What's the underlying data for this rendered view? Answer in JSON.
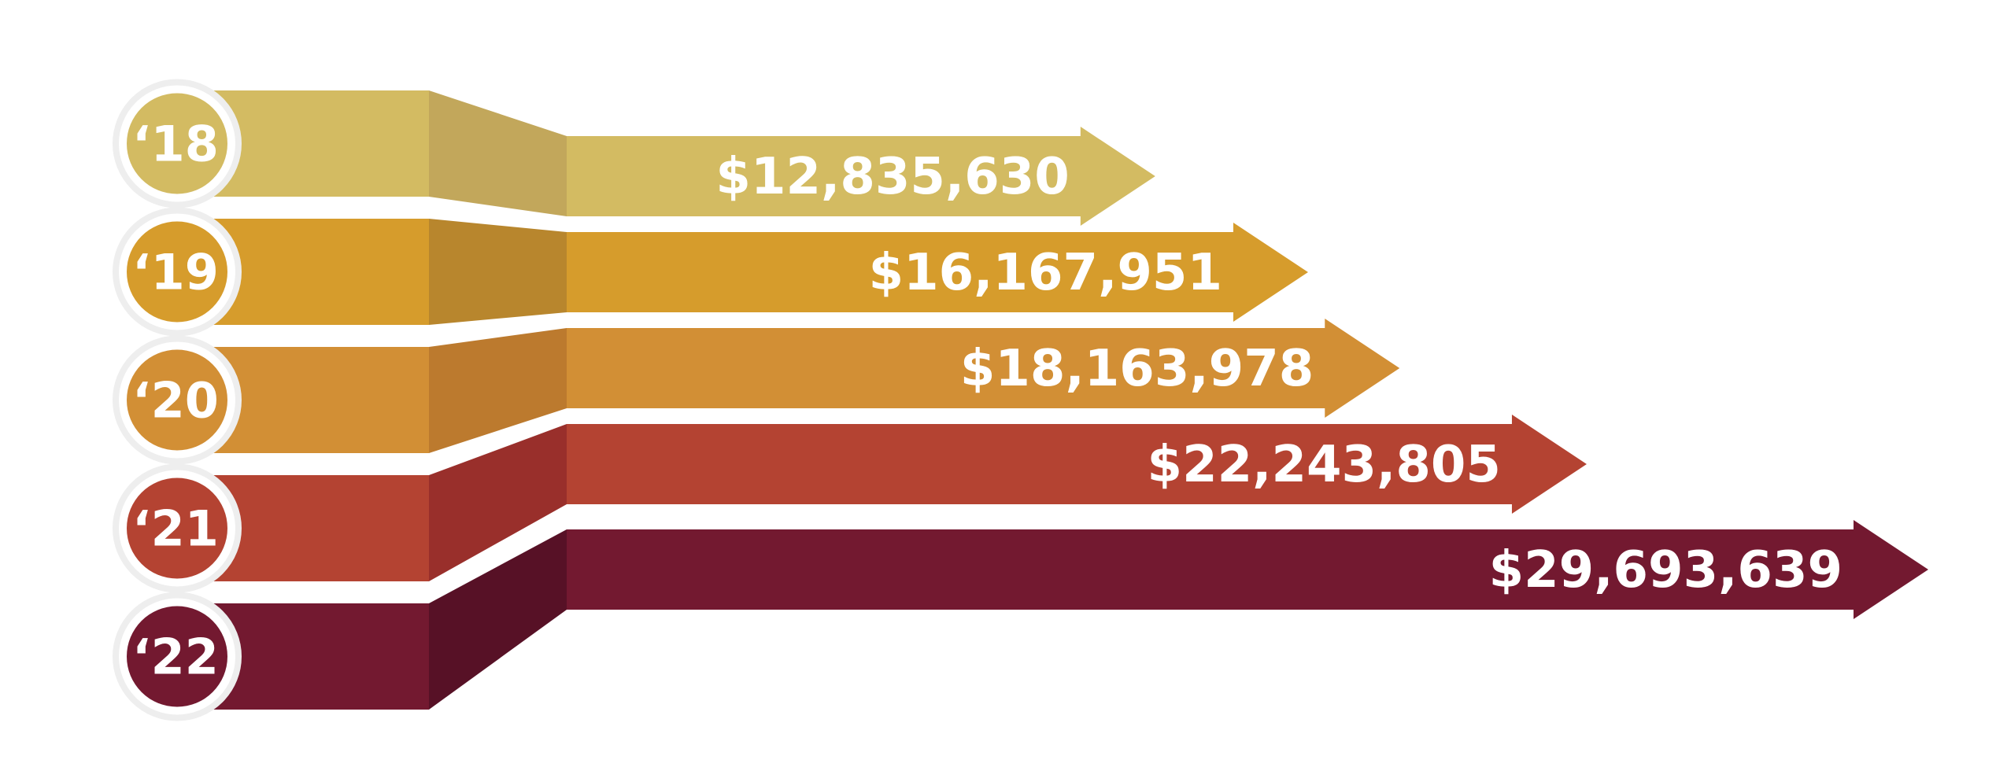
{
  "chart_data": {
    "type": "bar",
    "orientation": "horizontal",
    "title": "",
    "xlabel": "",
    "ylabel": "",
    "categories": [
      "‘18",
      "‘19",
      "‘20",
      "‘21",
      "‘22"
    ],
    "values": [
      12835630,
      16167951,
      18163978,
      22243805,
      29693639
    ],
    "value_labels": [
      "$12,835,630",
      "$16,167,951",
      "$18,163,978",
      "$22,243,805",
      "$29,693,639"
    ],
    "colors": [
      "#d3bb62",
      "#d69c2c",
      "#d28f35",
      "#b44332",
      "#731930"
    ],
    "fold_colors": [
      "#c2a75b",
      "#b8862d",
      "#bc7a2e",
      "#992f2b",
      "#571126"
    ],
    "legend": "none",
    "grid": false
  }
}
